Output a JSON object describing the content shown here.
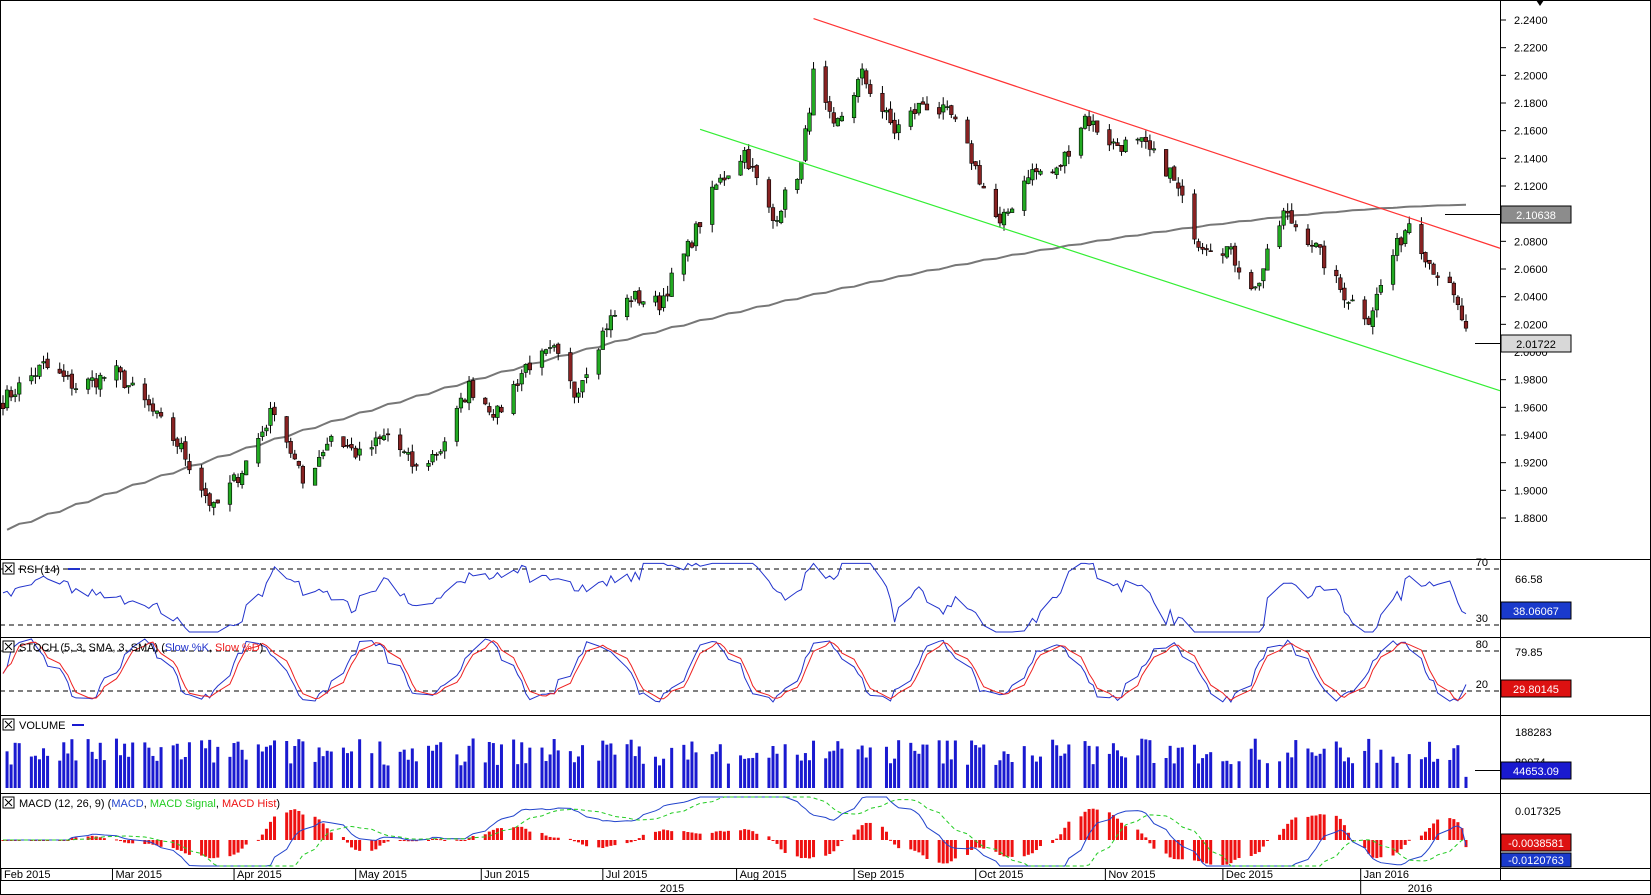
{
  "price_panel": {
    "price_ticks": [
      "2.2400",
      "2.2200",
      "2.2000",
      "2.1800",
      "2.1600",
      "2.1400",
      "2.1200",
      "2.1000",
      "2.0800",
      "2.0600",
      "2.0400",
      "2.0200",
      "2.0000",
      "1.9800",
      "1.9600",
      "1.9400",
      "1.9200",
      "1.9000",
      "1.8800"
    ],
    "ma_value_label": "2.10638",
    "last_price_label": "2.01722"
  },
  "rsi_panel": {
    "title": "RSI (14)",
    "level_upper": "70",
    "level_lower": "30",
    "tick_label": "66.58",
    "current_label": "38.06067"
  },
  "stoch_panel": {
    "title_prefix": "STOCH (5, 3, SMA, 3, SMA) (",
    "slow_k": "Slow %K",
    "slow_d": "Slow %D",
    "title_suffix": ")",
    "level_upper": "80",
    "level_lower": "20",
    "tick_label": "79.85",
    "current_label": "29.80145"
  },
  "volume_panel": {
    "title": "VOLUME",
    "tick_label": "188283",
    "tick_label_2": "89074",
    "current_label": "44653.09"
  },
  "macd_panel": {
    "title_prefix": "MACD (12, 26, 9) (",
    "macd": "MACD",
    "signal": "MACD Signal",
    "hist": "MACD Hist",
    "title_suffix": ")",
    "tick_label": "0.017325",
    "current_label": "-0.0038581",
    "second_label": "-0.0120763"
  },
  "time_axis": {
    "months": [
      "Feb 2015",
      "Mar 2015",
      "Apr 2015",
      "May 2015",
      "Jun 2015",
      "Jul 2015",
      "Aug 2015",
      "Sep 2015",
      "Oct 2015",
      "Nov 2015",
      "Dec 2015",
      "Jan 2016"
    ],
    "years": [
      "2015",
      "2016"
    ]
  },
  "colors": {
    "up_candle": "#22aa22",
    "down_candle": "#882222",
    "ma_line": "#777777",
    "resistance": "#ff3333",
    "support": "#33ee33",
    "rsi_line": "#2233cc",
    "stoch_k": "#2233cc",
    "stoch_d": "#ee2222",
    "volume_bar": "#1a1ad0",
    "macd_line": "#2244cc",
    "signal_line": "#22cc22",
    "hist_bar": "#ee1111"
  },
  "chart_data": {
    "type": "candlestick",
    "x_range": [
      "2015-02-02",
      "2016-01-29"
    ],
    "ylim": [
      1.87,
      2.25
    ],
    "ohlc_anchors": [
      [
        "2015-02-02",
        1.965
      ],
      [
        "2015-02-12",
        1.99
      ],
      [
        "2015-02-20",
        1.975
      ],
      [
        "2015-03-02",
        1.985
      ],
      [
        "2015-03-10",
        1.96
      ],
      [
        "2015-03-18",
        1.93
      ],
      [
        "2015-03-26",
        1.886
      ],
      [
        "2015-04-02",
        1.915
      ],
      [
        "2015-04-10",
        1.96
      ],
      [
        "2015-04-17",
        1.905
      ],
      [
        "2015-04-24",
        1.94
      ],
      [
        "2015-05-01",
        1.925
      ],
      [
        "2015-05-08",
        1.94
      ],
      [
        "2015-05-15",
        1.915
      ],
      [
        "2015-05-21",
        1.93
      ],
      [
        "2015-05-28",
        1.975
      ],
      [
        "2015-06-04",
        1.955
      ],
      [
        "2015-06-11",
        1.99
      ],
      [
        "2015-06-18",
        2.0
      ],
      [
        "2015-06-23",
        1.97
      ],
      [
        "2015-07-01",
        2.02
      ],
      [
        "2015-07-07",
        2.04
      ],
      [
        "2015-07-14",
        2.035
      ],
      [
        "2015-07-21",
        2.075
      ],
      [
        "2015-07-28",
        2.12
      ],
      [
        "2015-08-04",
        2.145
      ],
      [
        "2015-08-11",
        2.095
      ],
      [
        "2015-08-18",
        2.135
      ],
      [
        "2015-08-21",
        2.2
      ],
      [
        "2015-08-26",
        2.16
      ],
      [
        "2015-09-02",
        2.2
      ],
      [
        "2015-09-10",
        2.16
      ],
      [
        "2015-09-17",
        2.18
      ],
      [
        "2015-09-24",
        2.17
      ],
      [
        "2015-09-29",
        2.14
      ],
      [
        "2015-10-06",
        2.09
      ],
      [
        "2015-10-13",
        2.13
      ],
      [
        "2015-10-20",
        2.13
      ],
      [
        "2015-10-27",
        2.17
      ],
      [
        "2015-11-03",
        2.15
      ],
      [
        "2015-11-10",
        2.15
      ],
      [
        "2015-11-17",
        2.13
      ],
      [
        "2015-11-24",
        2.08
      ],
      [
        "2015-12-01",
        2.075
      ],
      [
        "2015-12-08",
        2.045
      ],
      [
        "2015-12-15",
        2.1
      ],
      [
        "2015-12-22",
        2.08
      ],
      [
        "2015-12-29",
        2.045
      ],
      [
        "2016-01-05",
        2.025
      ],
      [
        "2016-01-11",
        2.07
      ],
      [
        "2016-01-15",
        2.095
      ],
      [
        "2016-01-20",
        2.065
      ],
      [
        "2016-01-25",
        2.045
      ],
      [
        "2016-01-29",
        2.017
      ]
    ],
    "moving_average": {
      "start": 1.87,
      "end": 2.10638
    },
    "resistance_line": {
      "from": [
        "2015-08-21",
        2.241
      ],
      "to": [
        "2016-01-29",
        2.075
      ]
    },
    "support_line": {
      "from": [
        "2015-07-24",
        2.161
      ],
      "to": [
        "2016-01-29",
        1.972
      ]
    },
    "last_close": 2.01722,
    "rsi_last": 38.06067,
    "stoch_last": 29.80145,
    "volume_last": 44653.09,
    "macd_last": -0.0038581
  }
}
